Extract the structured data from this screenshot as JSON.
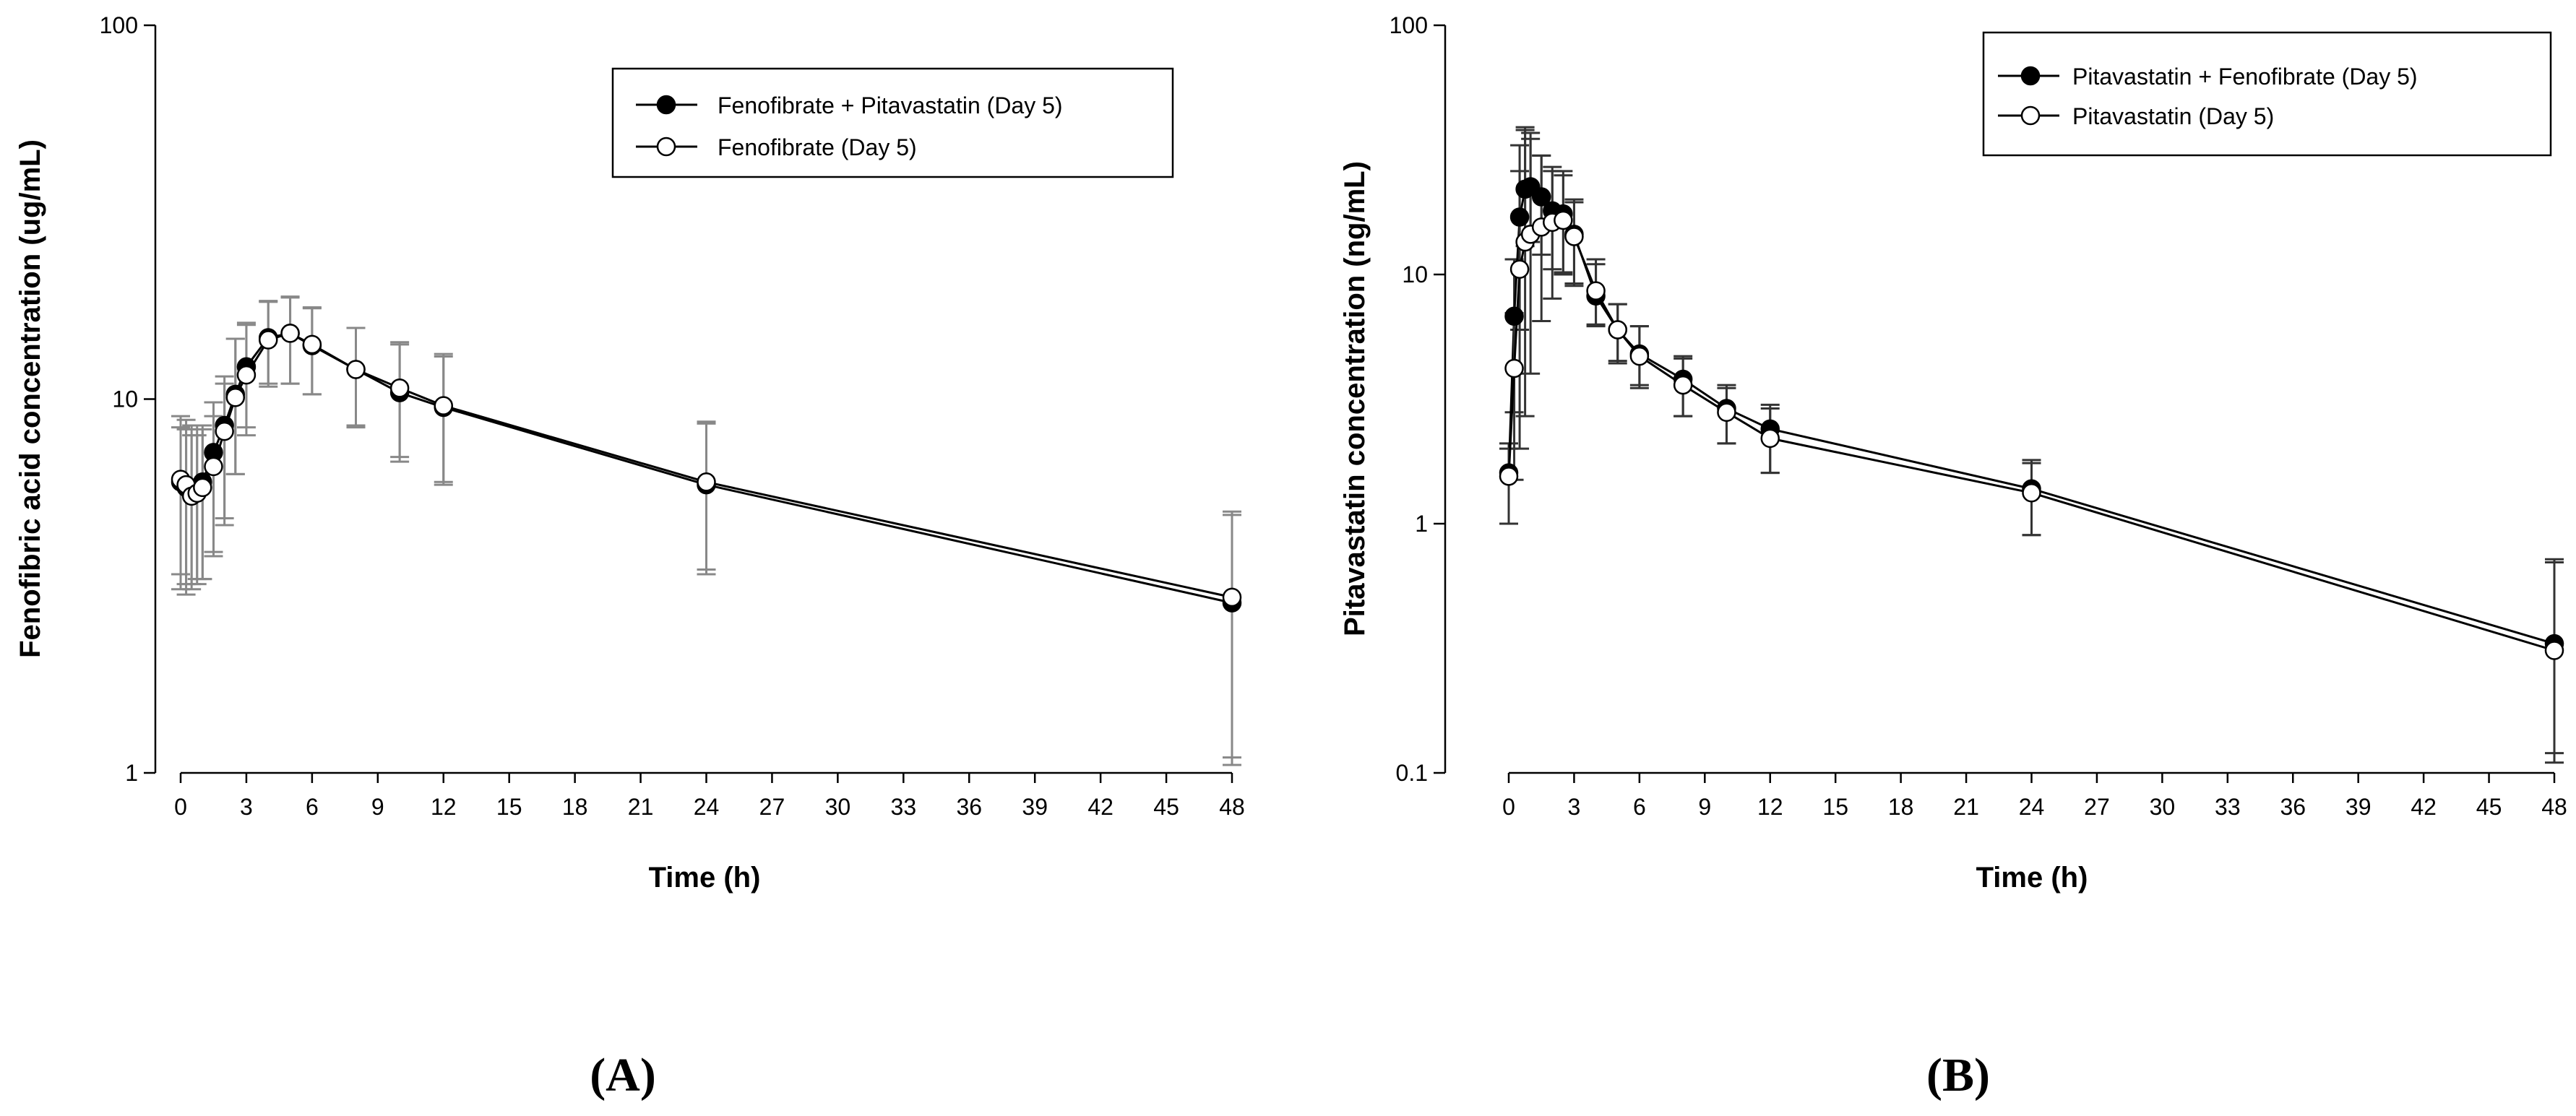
{
  "figure": {
    "panel_labels": [
      "(A)",
      "(B)"
    ]
  },
  "chart_data": [
    {
      "type": "line",
      "panel": "(A)",
      "xlabel": "Time (h)",
      "ylabel": "Fenofibric acid concentration (ug/mL)",
      "yscale": "log",
      "xlim": [
        0,
        48
      ],
      "ylim": [
        1,
        100
      ],
      "xticks": [
        0,
        3,
        6,
        9,
        12,
        15,
        18,
        21,
        24,
        27,
        30,
        33,
        36,
        39,
        42,
        45,
        48
      ],
      "yticks": [
        1,
        10,
        100
      ],
      "ytick_labels": [
        "1",
        "10",
        "100"
      ],
      "legend_position": "top-right",
      "series": [
        {
          "name": "Fenofibrate + Pitavastatin (Day 5)",
          "marker": "filled",
          "x": [
            0,
            0.25,
            0.5,
            0.75,
            1,
            1.5,
            2,
            2.5,
            3,
            4,
            5,
            6,
            8,
            10,
            12,
            24,
            48
          ],
          "y": [
            6.0,
            5.8,
            5.6,
            5.7,
            6.0,
            7.2,
            8.5,
            10.3,
            12.2,
            14.6,
            15.0,
            13.9,
            12.0,
            10.4,
            9.5,
            5.9,
            2.85
          ],
          "y_lower": [
            3.1,
            3.0,
            3.1,
            3.2,
            3.3,
            3.9,
            4.6,
            6.3,
            8.4,
            11.0,
            11.0,
            10.3,
            8.4,
            6.8,
            5.9,
            3.4,
            1.05
          ],
          "y_upper": [
            8.4,
            8.3,
            8.0,
            8.0,
            8.3,
            9.0,
            11.0,
            14.5,
            16.0,
            18.2,
            18.8,
            17.5,
            15.5,
            14.0,
            13.0,
            8.7,
            4.9
          ]
        },
        {
          "name": "Fenofibrate (Day 5)",
          "marker": "open",
          "x": [
            0,
            0.25,
            0.5,
            0.75,
            1,
            1.5,
            2,
            2.5,
            3,
            4,
            5,
            6,
            8,
            10,
            12,
            24,
            48
          ],
          "y": [
            6.1,
            5.9,
            5.5,
            5.6,
            5.8,
            6.6,
            8.2,
            10.1,
            11.6,
            14.4,
            15.0,
            14.0,
            12.0,
            10.7,
            9.6,
            6.0,
            2.95
          ],
          "y_lower": [
            3.4,
            3.2,
            3.2,
            3.3,
            3.3,
            3.8,
            4.8,
            6.3,
            8.0,
            10.8,
            11.0,
            10.3,
            8.5,
            7.0,
            6.0,
            3.5,
            1.1
          ],
          "y_upper": [
            9.0,
            8.8,
            8.5,
            8.5,
            8.5,
            9.8,
            11.5,
            14.5,
            15.8,
            18.3,
            18.7,
            17.6,
            15.5,
            14.2,
            13.2,
            8.6,
            5.0
          ]
        }
      ]
    },
    {
      "type": "line",
      "panel": "(B)",
      "xlabel": "Time (h)",
      "ylabel": "Pitavastatin concentration (ng/mL)",
      "yscale": "log",
      "xlim": [
        0,
        48
      ],
      "ylim": [
        0.1,
        100
      ],
      "xticks": [
        0,
        3,
        6,
        9,
        12,
        15,
        18,
        21,
        24,
        27,
        30,
        33,
        36,
        39,
        42,
        45,
        48
      ],
      "yticks": [
        0.1,
        1,
        10,
        100
      ],
      "ytick_labels": [
        "0.1",
        "1",
        "10",
        "100"
      ],
      "legend_position": "top-right",
      "series": [
        {
          "name": "Pitavastatin + Fenofibrate (Day 5)",
          "marker": "filled",
          "x": [
            0,
            0.25,
            0.5,
            0.75,
            1,
            1.5,
            2,
            2.5,
            3,
            4,
            5,
            6,
            8,
            10,
            12,
            24,
            48
          ],
          "y": [
            1.6,
            6.8,
            17.0,
            22.0,
            22.5,
            20.5,
            18.0,
            17.5,
            14.5,
            8.2,
            6.0,
            4.8,
            3.8,
            2.9,
            2.4,
            1.38,
            0.33
          ],
          "y_lower": [
            1.0,
            2.8,
            6.0,
            13.0,
            13.5,
            12.0,
            10.5,
            10.2,
            9.2,
            6.3,
            4.5,
            3.6,
            2.7,
            2.1,
            1.6,
            0.9,
            0.12
          ],
          "y_upper": [
            2.1,
            11.5,
            33.0,
            38.0,
            35.0,
            30.0,
            26.0,
            25.0,
            20.0,
            11.0,
            7.6,
            6.2,
            4.7,
            3.6,
            3.0,
            1.8,
            0.72
          ]
        },
        {
          "name": "Pitavastatin (Day 5)",
          "marker": "open",
          "x": [
            0,
            0.25,
            0.5,
            0.75,
            1,
            1.5,
            2,
            2.5,
            3,
            4,
            5,
            6,
            8,
            10,
            12,
            24,
            48
          ],
          "y": [
            1.55,
            4.2,
            10.5,
            13.5,
            14.5,
            15.5,
            16.2,
            16.5,
            14.2,
            8.6,
            6.0,
            4.7,
            3.6,
            2.8,
            2.2,
            1.33,
            0.31
          ],
          "y_lower": [
            1.0,
            1.5,
            2.0,
            2.7,
            4.0,
            6.5,
            8.0,
            10.0,
            9.0,
            6.2,
            4.4,
            3.5,
            2.7,
            2.1,
            1.6,
            0.9,
            0.11
          ],
          "y_upper": [
            2.0,
            7.0,
            26.0,
            39.0,
            37.0,
            30.0,
            27.0,
            26.0,
            19.5,
            11.5,
            7.6,
            6.2,
            4.6,
            3.5,
            2.9,
            1.75,
            0.7
          ]
        }
      ]
    }
  ]
}
